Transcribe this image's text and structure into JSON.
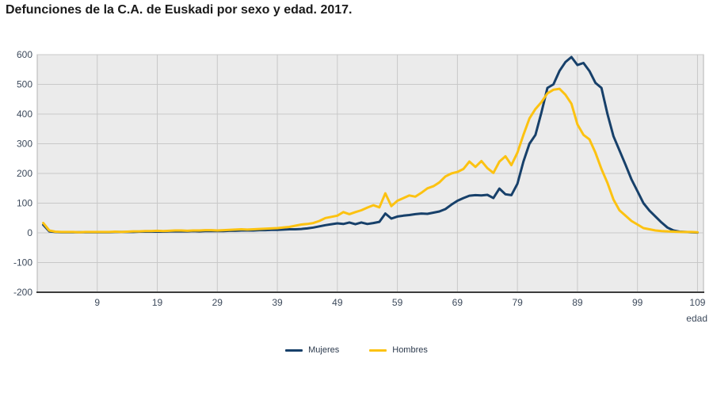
{
  "title": "Defunciones de la C.A. de Euskadi por sexo y edad. 2017.",
  "chart_data": {
    "type": "line",
    "title": "Defunciones de la C.A. de Euskadi por sexo y edad. 2017.",
    "xlabel": "edad",
    "ylabel": "",
    "x_start": 0,
    "x_step": 1,
    "xlim": [
      -1,
      110
    ],
    "ylim": [
      -200,
      600
    ],
    "x_ticks": [
      9,
      19,
      29,
      39,
      49,
      59,
      69,
      79,
      89,
      99,
      109
    ],
    "y_ticks": [
      -200,
      -100,
      0,
      100,
      200,
      300,
      400,
      500,
      600
    ],
    "grid": true,
    "legend_position": "bottom-center",
    "colors": {
      "plot_bg": "#ebebeb",
      "grid": "#c8c8c8",
      "plot_border": "#b3b3b3",
      "axis": "#3c3c3c",
      "tick_text": "#3d4a5c",
      "mujeres": "#17406a",
      "hombres": "#fcc211"
    },
    "series": [
      {
        "name": "Mujeres",
        "color": "#17406a",
        "values": [
          27,
          5,
          3,
          2,
          2,
          2,
          2,
          2,
          2,
          2,
          2,
          2,
          3,
          3,
          3,
          3,
          4,
          4,
          4,
          4,
          4,
          5,
          5,
          5,
          5,
          6,
          5,
          6,
          6,
          6,
          6,
          7,
          7,
          8,
          8,
          8,
          9,
          9,
          10,
          10,
          11,
          12,
          12,
          13,
          15,
          18,
          22,
          26,
          29,
          32,
          30,
          35,
          29,
          35,
          30,
          33,
          37,
          65,
          48,
          55,
          58,
          60,
          63,
          65,
          64,
          68,
          72,
          80,
          95,
          108,
          117,
          125,
          127,
          126,
          128,
          117,
          149,
          130,
          127,
          165,
          240,
          300,
          330,
          405,
          488,
          500,
          545,
          575,
          592,
          565,
          572,
          545,
          505,
          488,
          400,
          325,
          278,
          230,
          180,
          140,
          100,
          75,
          55,
          35,
          18,
          8,
          4,
          3,
          2,
          1
        ]
      },
      {
        "name": "Hombres",
        "color": "#fcc211",
        "values": [
          33,
          8,
          4,
          3,
          3,
          3,
          2,
          3,
          3,
          3,
          3,
          3,
          4,
          3,
          4,
          5,
          5,
          6,
          6,
          7,
          6,
          7,
          8,
          8,
          7,
          8,
          8,
          9,
          9,
          8,
          9,
          10,
          11,
          12,
          11,
          12,
          13,
          14,
          15,
          16,
          18,
          20,
          24,
          28,
          30,
          33,
          40,
          50,
          54,
          58,
          70,
          63,
          70,
          76,
          85,
          93,
          86,
          133,
          90,
          108,
          117,
          126,
          122,
          135,
          150,
          157,
          170,
          190,
          200,
          205,
          215,
          240,
          222,
          242,
          218,
          202,
          240,
          258,
          228,
          270,
          330,
          385,
          417,
          440,
          470,
          482,
          485,
          465,
          435,
          365,
          330,
          315,
          270,
          215,
          168,
          112,
          76,
          58,
          40,
          28,
          16,
          12,
          8,
          6,
          5,
          4,
          3,
          3,
          3,
          2
        ]
      }
    ]
  },
  "legend": {
    "mujeres_label": "Mujeres",
    "hombres_label": "Hombres"
  },
  "axis_labels": {
    "x_axis_label": "edad"
  }
}
